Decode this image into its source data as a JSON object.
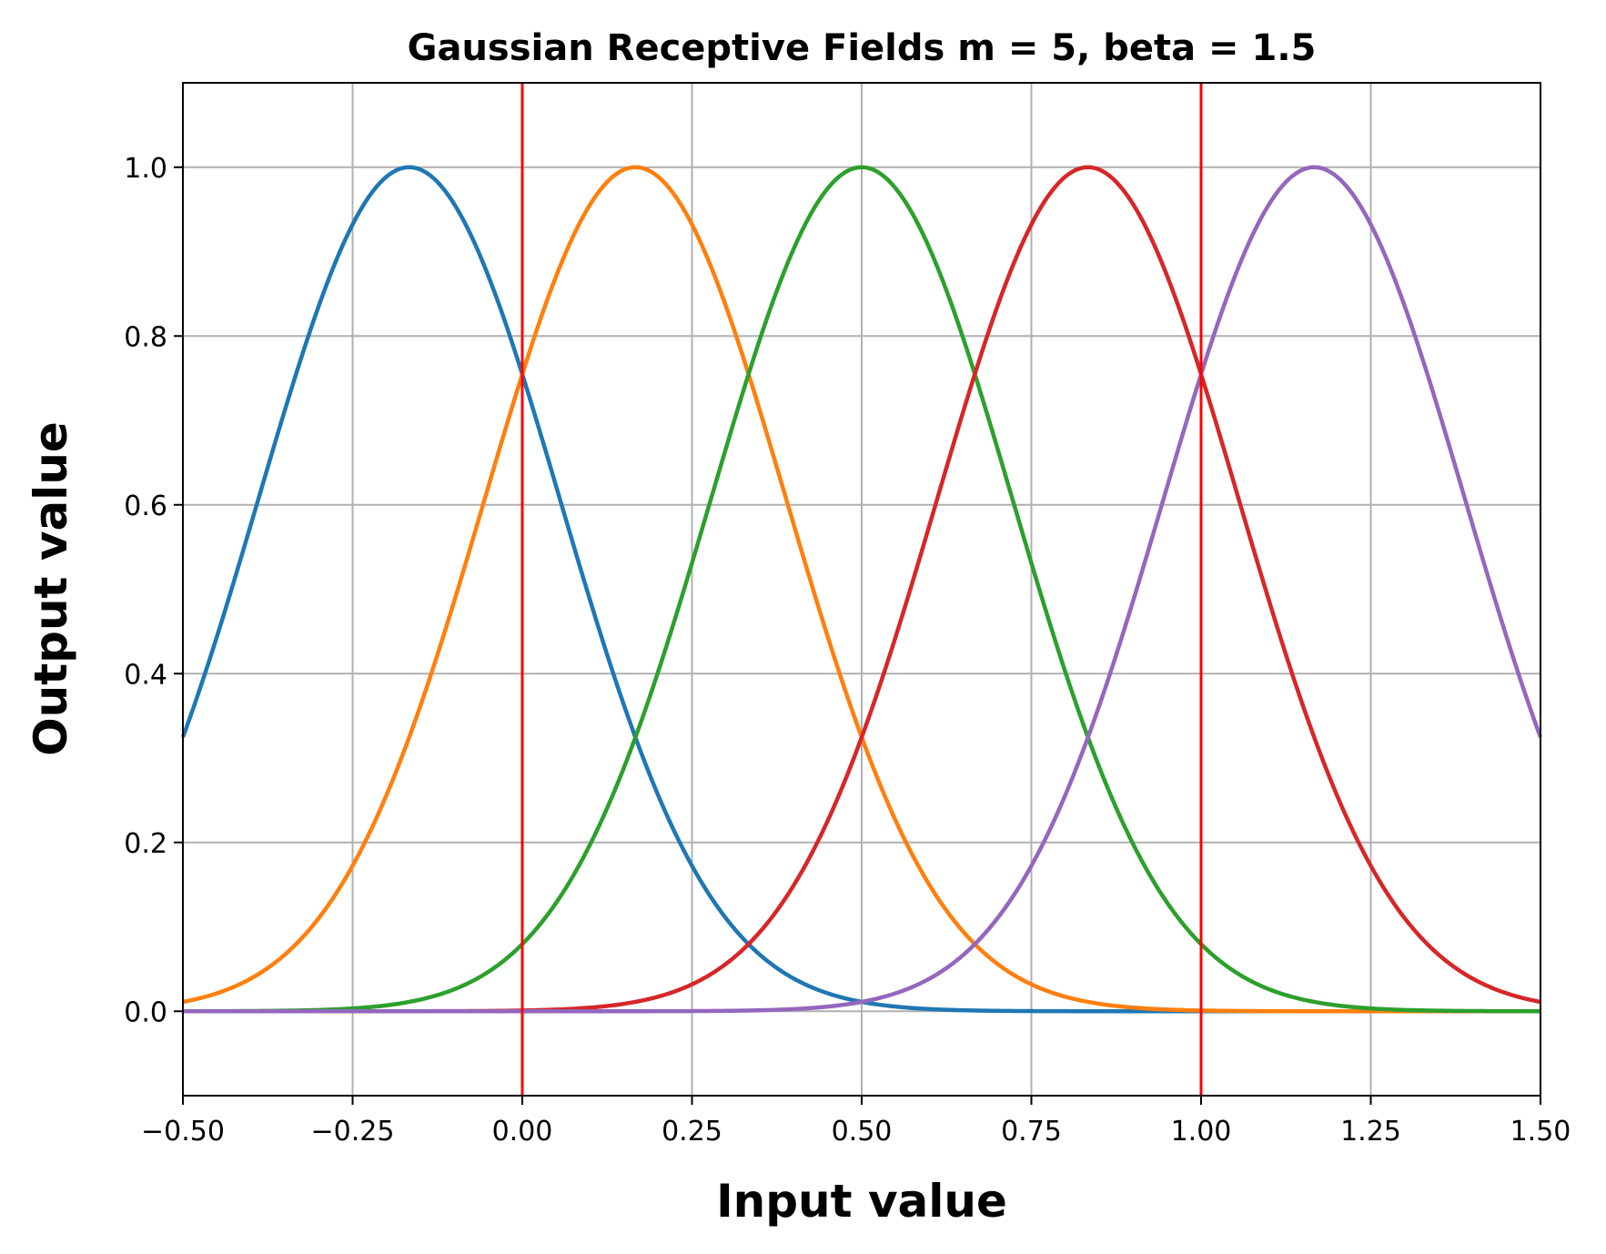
{
  "chart_data": {
    "type": "line",
    "title": "Gaussian Receptive Fields m = 5, beta = 1.5",
    "xlabel": "Input value",
    "ylabel": "Output value",
    "xlim": [
      -0.5,
      1.5
    ],
    "ylim": [
      -0.1,
      1.1
    ],
    "xticks": [
      -0.5,
      -0.25,
      0.0,
      0.25,
      0.5,
      0.75,
      1.0,
      1.25,
      1.5
    ],
    "xtick_labels": [
      "−0.50",
      "−0.25",
      "0.00",
      "0.25",
      "0.50",
      "0.75",
      "1.00",
      "1.25",
      "1.50"
    ],
    "yticks": [
      0.0,
      0.2,
      0.4,
      0.6,
      0.8,
      1.0
    ],
    "ytick_labels": [
      "0.0",
      "0.2",
      "0.4",
      "0.6",
      "0.8",
      "1.0"
    ],
    "grid": true,
    "legend": null,
    "sigma": 0.2222,
    "series": [
      {
        "center": -0.1667,
        "color": "#1f77b4"
      },
      {
        "center": 0.1667,
        "color": "#ff7f0e"
      },
      {
        "center": 0.5,
        "color": "#2ca02c"
      },
      {
        "center": 0.8333,
        "color": "#d62728"
      },
      {
        "center": 1.1667,
        "color": "#9467bd"
      }
    ],
    "vertical_lines": [
      {
        "x": 0.0,
        "color": "#ff0000"
      },
      {
        "x": 1.0,
        "color": "#ff0000"
      }
    ]
  }
}
